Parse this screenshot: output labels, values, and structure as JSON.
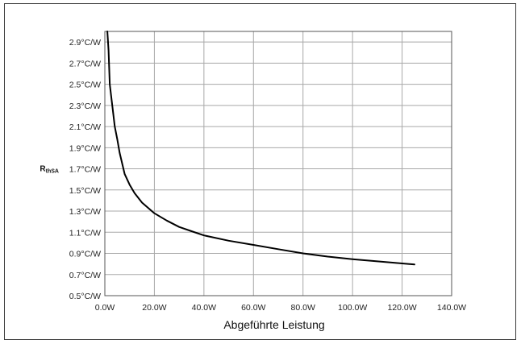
{
  "chart_data": {
    "type": "line",
    "title": "",
    "xlabel": "Abgeführte Leistung",
    "ylabel_main": "R",
    "ylabel_sub": "thSA",
    "xlim": [
      0,
      140
    ],
    "ylim": [
      0.5,
      3.0
    ],
    "x_ticks": [
      0,
      20,
      40,
      60,
      80,
      100,
      120,
      140
    ],
    "x_tick_labels": [
      "0.0W",
      "20.0W",
      "40.0W",
      "60.0W",
      "80.0W",
      "100.0W",
      "120.0W",
      "140.0W"
    ],
    "y_ticks": [
      0.5,
      0.7,
      0.9,
      1.1,
      1.3,
      1.5,
      1.7,
      1.9,
      2.1,
      2.3,
      2.5,
      2.7,
      2.9
    ],
    "y_tick_labels": [
      "0.5°C/W",
      "0.7°C/W",
      "0.9°C/W",
      "1.1°C/W",
      "1.3°C/W",
      "1.5°C/W",
      "1.7°C/W",
      "1.9°C/W",
      "2.1°C/W",
      "2.3°C/W",
      "2.5°C/W",
      "2.7°C/W",
      "2.9°C/W"
    ],
    "grid": true,
    "series": [
      {
        "color": "#000000",
        "x": [
          1,
          1.5,
          2,
          3,
          4,
          5,
          6,
          8,
          10,
          12,
          15,
          20,
          25,
          30,
          35,
          40,
          50,
          60,
          70,
          80,
          90,
          100,
          110,
          120,
          125
        ],
        "y": [
          3.0,
          2.82,
          2.5,
          2.3,
          2.1,
          1.98,
          1.85,
          1.65,
          1.55,
          1.47,
          1.38,
          1.28,
          1.21,
          1.15,
          1.11,
          1.07,
          1.02,
          0.98,
          0.94,
          0.9,
          0.87,
          0.845,
          0.825,
          0.805,
          0.795
        ]
      }
    ]
  }
}
